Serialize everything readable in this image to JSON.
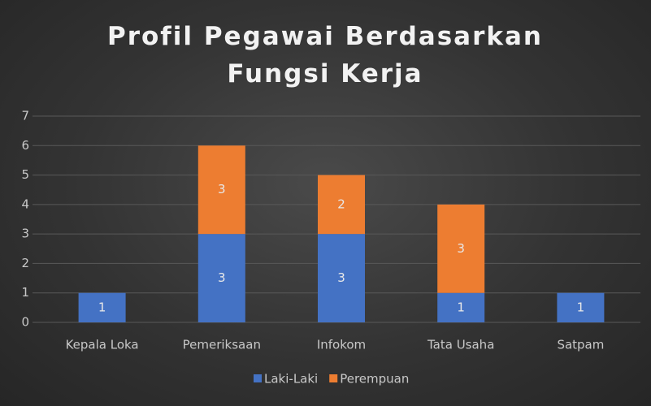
{
  "chart_data": {
    "type": "stacked_bar",
    "title": "Profil Pegawai Berdasarkan Fungsi Kerja",
    "categories": [
      "Kepala Loka",
      "Pemeriksaan",
      "Infokom",
      "Tata Usaha",
      "Satpam"
    ],
    "series": [
      {
        "name": "Laki-Laki",
        "color": "#4472c4",
        "values": [
          1,
          3,
          3,
          1,
          1
        ]
      },
      {
        "name": "Perempuan",
        "color": "#ed7d31",
        "values": [
          null,
          3,
          2,
          3,
          null
        ]
      }
    ],
    "ylim": [
      0,
      7
    ],
    "yticks": [
      0,
      1,
      2,
      3,
      4,
      5,
      6,
      7
    ],
    "grid": true,
    "legend": "bottom"
  }
}
